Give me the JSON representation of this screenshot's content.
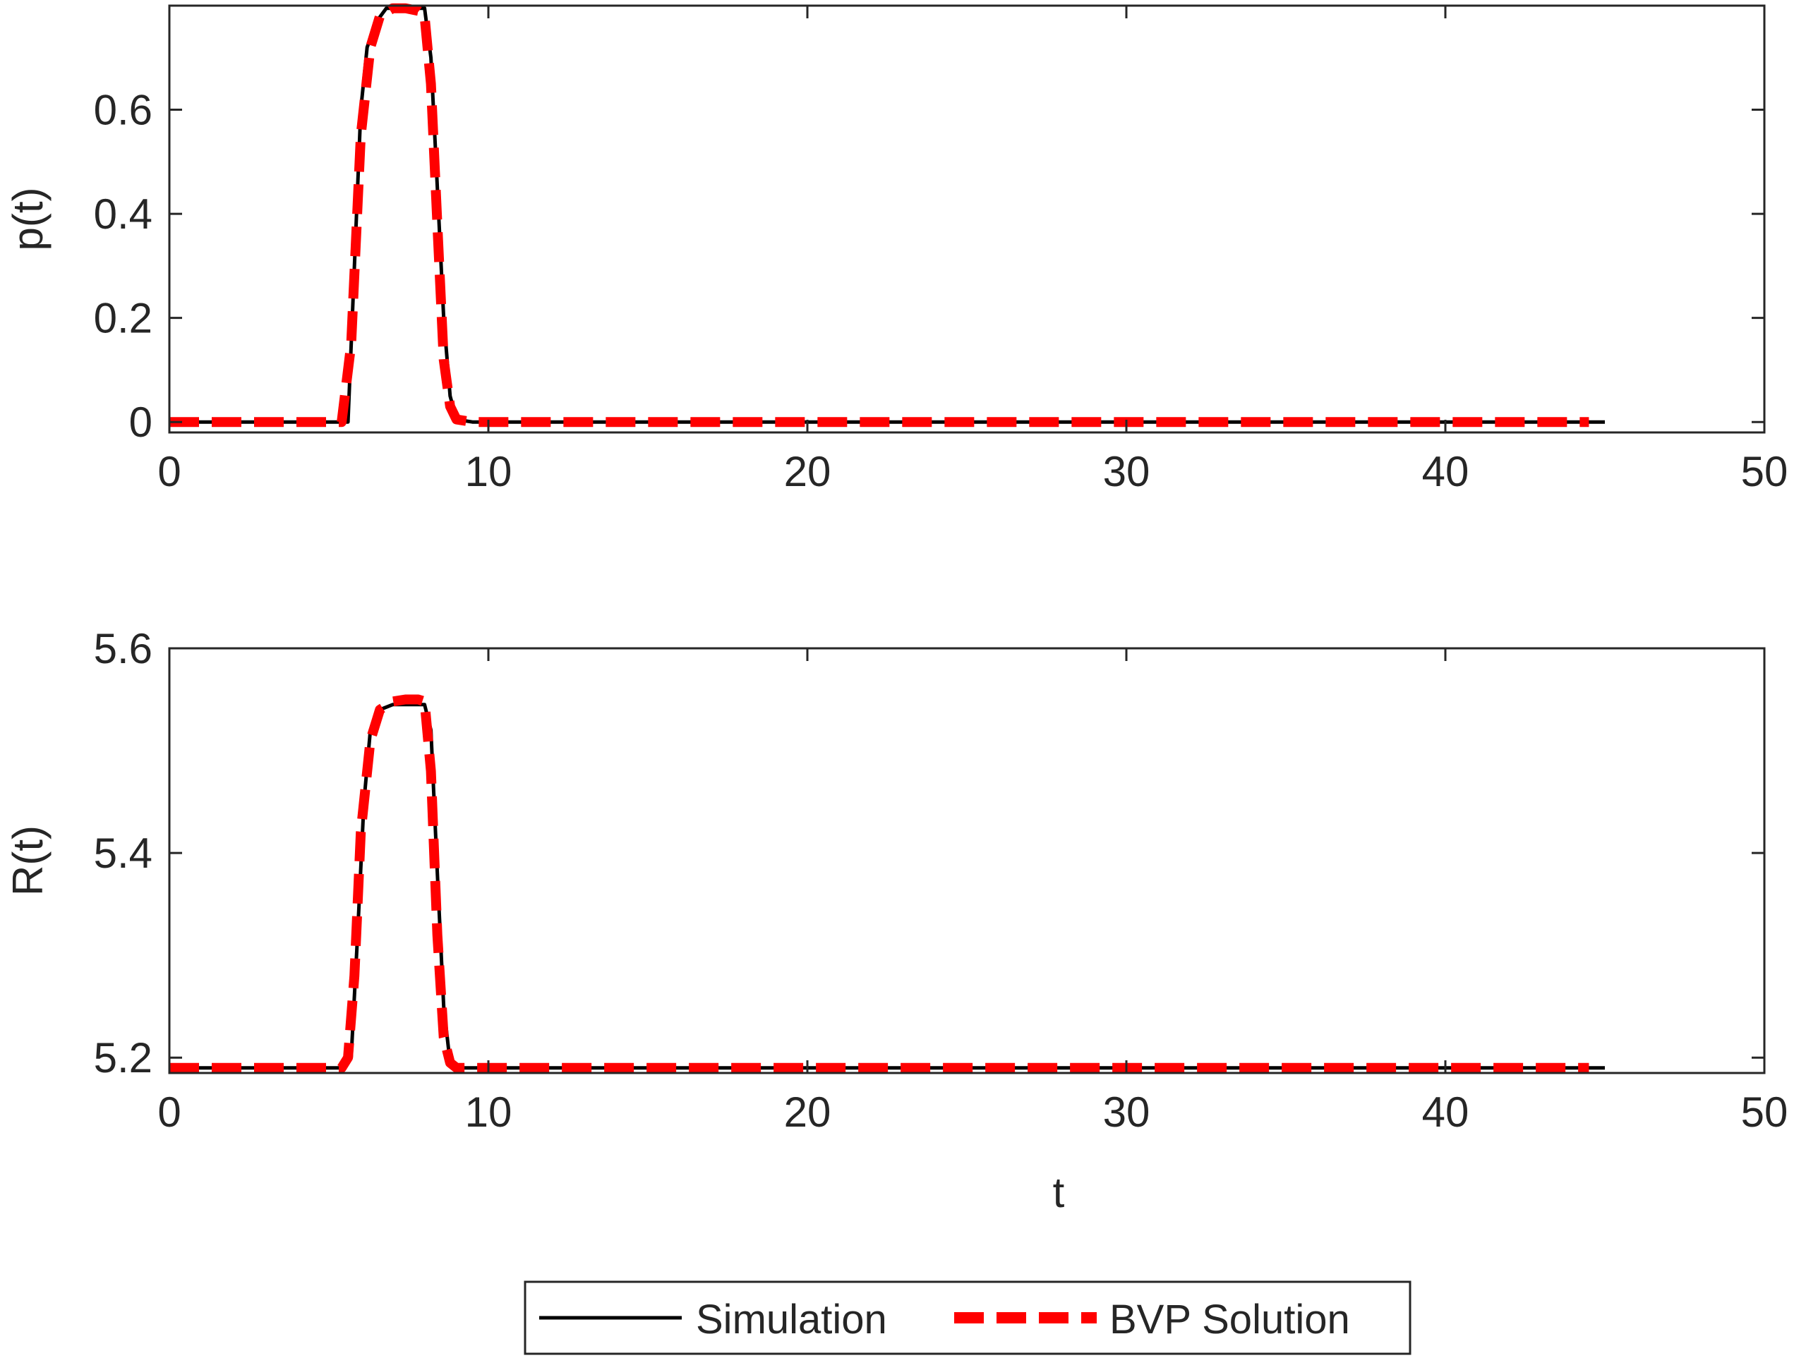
{
  "figure": {
    "legend_entries": [
      {
        "label": "Simulation",
        "style": "solid",
        "color": "#000000"
      },
      {
        "label": "BVP Solution",
        "style": "dashed",
        "color": "#ff0000"
      }
    ],
    "legend_position": "bottom-center",
    "colors": {
      "axes": "#262626",
      "simulation": "#000000",
      "bvp": "#ff0000"
    }
  },
  "chart_data": [
    {
      "type": "line",
      "title": "",
      "xlabel": "",
      "ylabel": "p(t)",
      "xlim": [
        0,
        50
      ],
      "ylim": [
        -0.02,
        0.8
      ],
      "xticks": [
        0,
        10,
        20,
        30,
        40,
        50
      ],
      "xtick_labels": [
        "0",
        "10",
        "20",
        "30",
        "40",
        "50"
      ],
      "yticks": [
        0,
        0.2,
        0.4,
        0.6
      ],
      "ytick_labels": [
        "0",
        "0.2",
        "0.4",
        "0.6"
      ],
      "grid": false,
      "series": [
        {
          "name": "Simulation",
          "style": "solid",
          "x": [
            0,
            5.0,
            5.6,
            5.8,
            6.0,
            6.2,
            6.5,
            6.8,
            7.2,
            7.6,
            8.0,
            8.2,
            8.4,
            8.6,
            8.8,
            9.0,
            9.5,
            10,
            20,
            30,
            40,
            45
          ],
          "y": [
            0,
            0,
            0,
            0.3,
            0.6,
            0.72,
            0.77,
            0.795,
            0.795,
            0.795,
            0.795,
            0.7,
            0.45,
            0.2,
            0.05,
            0.005,
            0,
            0,
            0,
            0,
            0,
            0
          ]
        },
        {
          "name": "BVP Solution",
          "style": "dashed",
          "x": [
            0,
            5.0,
            5.4,
            5.7,
            6.0,
            6.3,
            6.6,
            7.0,
            7.4,
            7.8,
            8.0,
            8.2,
            8.4,
            8.6,
            8.8,
            9.0,
            9.5,
            10,
            20,
            30,
            40,
            44.5
          ],
          "y": [
            0,
            0,
            0,
            0.15,
            0.55,
            0.72,
            0.78,
            0.795,
            0.795,
            0.79,
            0.78,
            0.65,
            0.38,
            0.12,
            0.03,
            0.005,
            0,
            0,
            0,
            0,
            0,
            0
          ]
        }
      ]
    },
    {
      "type": "line",
      "title": "",
      "xlabel": "t",
      "ylabel": "R(t)",
      "xlim": [
        0,
        50
      ],
      "ylim": [
        5.185,
        5.6
      ],
      "xticks": [
        0,
        10,
        20,
        30,
        40,
        50
      ],
      "xtick_labels": [
        "0",
        "10",
        "20",
        "30",
        "40",
        "50"
      ],
      "yticks": [
        5.2,
        5.4,
        5.6
      ],
      "ytick_labels": [
        "5.2",
        "5.4",
        "5.6"
      ],
      "grid": false,
      "series": [
        {
          "name": "Simulation",
          "style": "solid",
          "x": [
            0,
            5.5,
            5.7,
            5.9,
            6.1,
            6.3,
            6.6,
            7.0,
            7.5,
            8.0,
            8.2,
            8.4,
            8.6,
            8.8,
            9.0,
            10,
            20,
            30,
            40,
            45
          ],
          "y": [
            5.19,
            5.19,
            5.2,
            5.32,
            5.45,
            5.52,
            5.54,
            5.545,
            5.545,
            5.545,
            5.52,
            5.38,
            5.25,
            5.195,
            5.19,
            5.19,
            5.19,
            5.19,
            5.19,
            5.19
          ]
        },
        {
          "name": "BVP Solution",
          "style": "dashed",
          "x": [
            0,
            5.0,
            5.4,
            5.6,
            5.8,
            6.0,
            6.3,
            6.6,
            7.0,
            7.4,
            7.8,
            8.0,
            8.2,
            8.4,
            8.6,
            8.8,
            9.0,
            10,
            20,
            30,
            40,
            44.5
          ],
          "y": [
            5.19,
            5.19,
            5.19,
            5.2,
            5.28,
            5.42,
            5.51,
            5.54,
            5.548,
            5.55,
            5.55,
            5.548,
            5.48,
            5.32,
            5.22,
            5.195,
            5.19,
            5.19,
            5.19,
            5.19,
            5.19,
            5.19
          ]
        }
      ]
    }
  ]
}
